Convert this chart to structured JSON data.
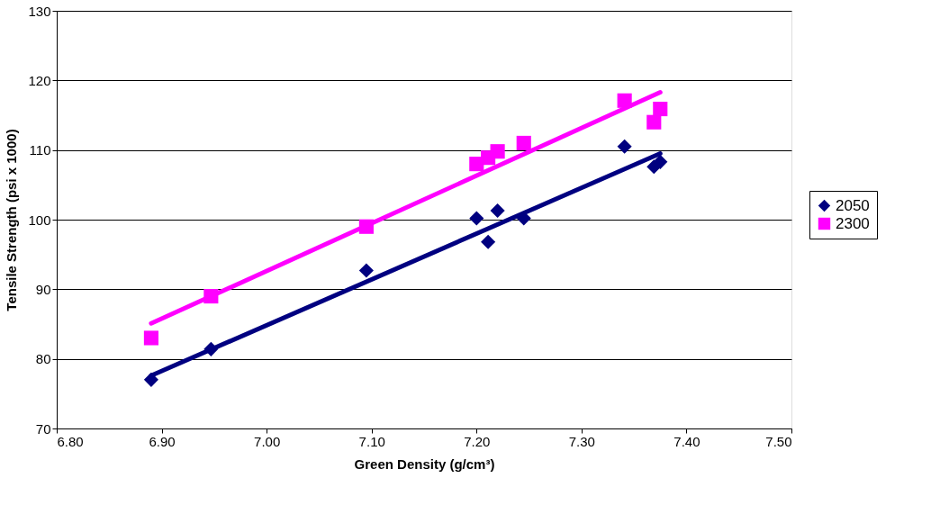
{
  "chart_data": {
    "type": "scatter",
    "xlabel": "Green Density (g/cm³)",
    "ylabel": "Tensile Strength (psi x 1000)",
    "xlim": [
      6.8,
      7.5
    ],
    "xticks": [
      {
        "value": 6.8,
        "label": "6.80"
      },
      {
        "value": 6.9,
        "label": "6.90"
      },
      {
        "value": 7.0,
        "label": "7.00"
      },
      {
        "value": 7.1,
        "label": "7.10"
      },
      {
        "value": 7.2,
        "label": "7.20"
      },
      {
        "value": 7.3,
        "label": "7.30"
      },
      {
        "value": 7.4,
        "label": "7.40"
      },
      {
        "value": 7.5,
        "label": "7.50"
      }
    ],
    "ylim": [
      70,
      130
    ],
    "yticks": [
      70,
      80,
      90,
      100,
      110,
      120,
      130
    ],
    "grid": "y",
    "legend": "right",
    "series": [
      {
        "name": "2050",
        "marker": "diamond",
        "color": "#000080",
        "x": [
          6.89,
          6.947,
          7.095,
          7.2,
          7.211,
          7.22,
          7.245,
          7.341,
          7.369,
          7.375
        ],
        "values": [
          77,
          81.4,
          92.7,
          100.2,
          96.8,
          101.3,
          100.2,
          110.5,
          107.6,
          108.3
        ]
      },
      {
        "name": "2300",
        "marker": "square",
        "color": "#ff00ff",
        "x": [
          6.89,
          6.947,
          7.095,
          7.2,
          7.211,
          7.22,
          7.245,
          7.341,
          7.369,
          7.375
        ],
        "values": [
          83,
          89,
          99,
          108,
          108.9,
          109.8,
          111,
          117.1,
          114,
          115.9
        ]
      },
      {
        "type": "line",
        "color": "#000080",
        "x": [
          6.89,
          7.375
        ],
        "values": [
          77.6,
          109.5
        ]
      },
      {
        "type": "line",
        "color": "#ff00ff",
        "x": [
          6.89,
          7.375
        ],
        "values": [
          85.1,
          118.3
        ]
      }
    ]
  }
}
